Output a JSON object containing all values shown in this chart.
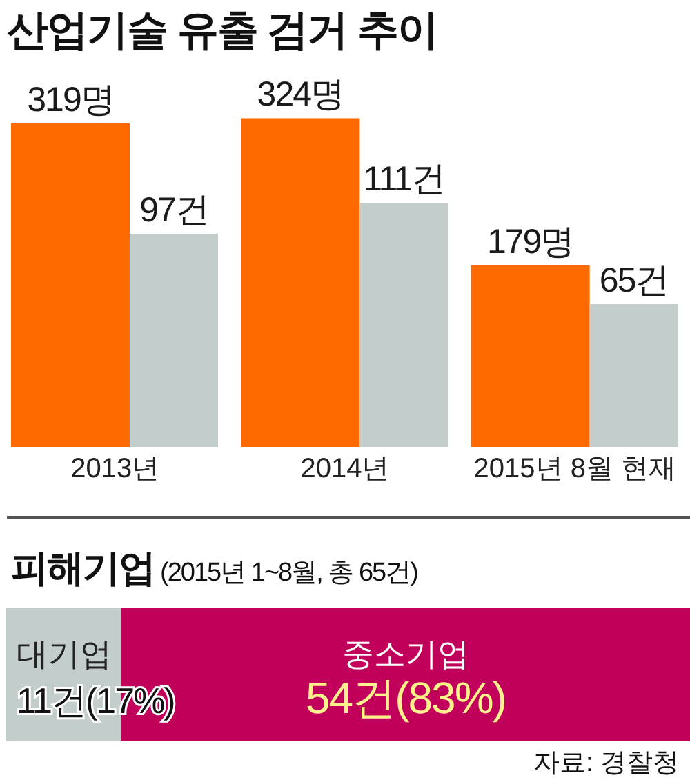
{
  "chart_data": [
    {
      "type": "bar",
      "title": "산업기술 유출 검거 추이",
      "categories": [
        "2013년",
        "2014년",
        "2015년 8월 현재"
      ],
      "series": [
        {
          "color": "#ff6a00",
          "values": [
            319,
            324,
            179
          ],
          "value_labels": [
            "319명",
            "324명",
            "179명"
          ]
        },
        {
          "color": "#c2cdcc",
          "axis": "y2",
          "values": [
            97,
            111,
            65
          ],
          "value_labels": [
            "97건",
            "111건",
            "65건"
          ]
        }
      ]
    },
    {
      "type": "bar",
      "orientation": "horizontal",
      "stacked": true,
      "title": "피해기업",
      "subtitle": "(2015년 1~8월, 총 65건)",
      "categories": [
        null
      ],
      "series": [
        {
          "name": "대기업",
          "color": "#c2cdcc",
          "values": [
            11
          ],
          "value_labels": [
            "11건(17%)"
          ]
        },
        {
          "name": "중소기업",
          "color": "#c0005a",
          "values": [
            54
          ],
          "value_labels": [
            "54건(83%)"
          ]
        }
      ],
      "annotations": [
        "자료: 경찰청"
      ]
    }
  ]
}
